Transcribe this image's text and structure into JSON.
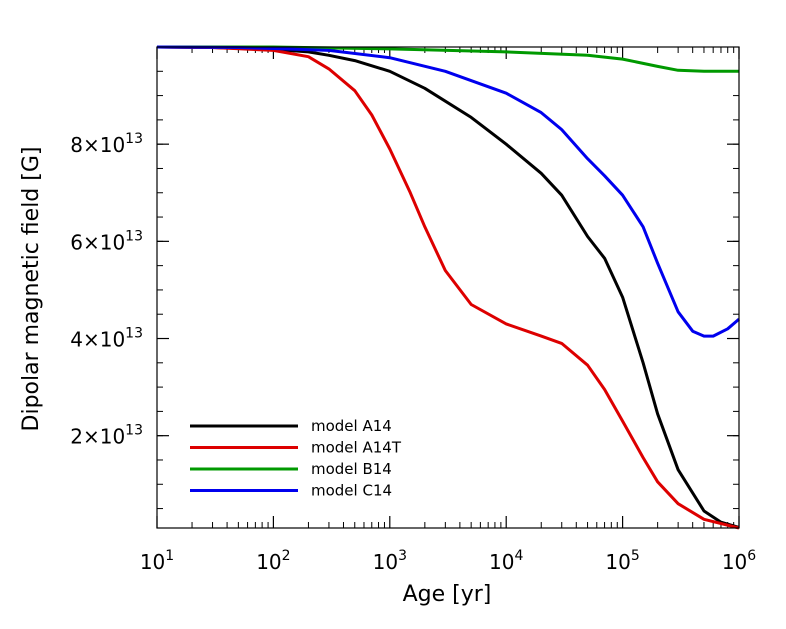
{
  "chart_data": {
    "type": "line",
    "xlabel": "Age [yr]",
    "ylabel": "Dipolar magnetic field [G]",
    "x_scale": "log",
    "xlim": [
      10,
      1000000
    ],
    "ylim": [
      1000000000000.0,
      100000000000000.0
    ],
    "x_ticks": [
      {
        "value": 10,
        "mant": "10",
        "exp": "1"
      },
      {
        "value": 100,
        "mant": "10",
        "exp": "2"
      },
      {
        "value": 1000,
        "mant": "10",
        "exp": "3"
      },
      {
        "value": 10000,
        "mant": "10",
        "exp": "4"
      },
      {
        "value": 100000,
        "mant": "10",
        "exp": "5"
      },
      {
        "value": 1000000,
        "mant": "10",
        "exp": "6"
      }
    ],
    "y_ticks": [
      {
        "value": 20000000000000.0,
        "mant": "2×10",
        "exp": "13"
      },
      {
        "value": 40000000000000.0,
        "mant": "4×10",
        "exp": "13"
      },
      {
        "value": 60000000000000.0,
        "mant": "6×10",
        "exp": "13"
      },
      {
        "value": 80000000000000.0,
        "mant": "8×10",
        "exp": "13"
      }
    ],
    "legend_position": "bottom-left",
    "series": [
      {
        "name": "model A14",
        "color": "#000000",
        "points": [
          [
            10,
            100000000000000.0
          ],
          [
            30,
            99900000000000.0
          ],
          [
            100,
            99500000000000.0
          ],
          [
            200,
            99000000000000.0
          ],
          [
            300,
            98300000000000.0
          ],
          [
            500,
            97200000000000.0
          ],
          [
            1000,
            95000000000000.0
          ],
          [
            2000,
            91500000000000.0
          ],
          [
            5000,
            85500000000000.0
          ],
          [
            10000,
            80000000000000.0
          ],
          [
            20000,
            74000000000000.0
          ],
          [
            30000,
            69500000000000.0
          ],
          [
            50000,
            61000000000000.0
          ],
          [
            70000,
            56500000000000.0
          ],
          [
            100000,
            48500000000000.0
          ],
          [
            150000,
            35000000000000.0
          ],
          [
            200000,
            24500000000000.0
          ],
          [
            300000,
            13000000000000.0
          ],
          [
            500000,
            4500000000000.0
          ],
          [
            700000,
            2200000000000.0
          ],
          [
            1000000,
            1100000000000.0
          ]
        ]
      },
      {
        "name": "model A14T",
        "color": "#dd0000",
        "points": [
          [
            10,
            100000000000000.0
          ],
          [
            30,
            99900000000000.0
          ],
          [
            100,
            99300000000000.0
          ],
          [
            200,
            98000000000000.0
          ],
          [
            300,
            95500000000000.0
          ],
          [
            500,
            91000000000000.0
          ],
          [
            700,
            86000000000000.0
          ],
          [
            1000,
            79000000000000.0
          ],
          [
            1500,
            70000000000000.0
          ],
          [
            2000,
            63000000000000.0
          ],
          [
            3000,
            54000000000000.0
          ],
          [
            5000,
            47000000000000.0
          ],
          [
            10000,
            43000000000000.0
          ],
          [
            20000,
            40500000000000.0
          ],
          [
            30000,
            39000000000000.0
          ],
          [
            50000,
            34500000000000.0
          ],
          [
            70000,
            29500000000000.0
          ],
          [
            100000,
            23000000000000.0
          ],
          [
            150000,
            15500000000000.0
          ],
          [
            200000,
            10500000000000.0
          ],
          [
            300000,
            6000000000000.0
          ],
          [
            500000,
            2800000000000.0
          ],
          [
            1000000,
            1000000000000.0
          ]
        ]
      },
      {
        "name": "model B14",
        "color": "#009900",
        "points": [
          [
            10,
            100000000000000.0
          ],
          [
            100,
            100000000000000.0
          ],
          [
            1000,
            99600000000000.0
          ],
          [
            10000,
            99000000000000.0
          ],
          [
            50000,
            98300000000000.0
          ],
          [
            100000,
            97500000000000.0
          ],
          [
            200000,
            96000000000000.0
          ],
          [
            300000,
            95200000000000.0
          ],
          [
            500000,
            95000000000000.0
          ],
          [
            1000000,
            95000000000000.0
          ]
        ]
      },
      {
        "name": "model C14",
        "color": "#0000ee",
        "points": [
          [
            10,
            100000000000000.0
          ],
          [
            50,
            99900000000000.0
          ],
          [
            100,
            99700000000000.0
          ],
          [
            300,
            99300000000000.0
          ],
          [
            1000,
            97800000000000.0
          ],
          [
            3000,
            95000000000000.0
          ],
          [
            10000,
            90500000000000.0
          ],
          [
            20000,
            86500000000000.0
          ],
          [
            30000,
            83000000000000.0
          ],
          [
            50000,
            77000000000000.0
          ],
          [
            70000,
            73500000000000.0
          ],
          [
            100000,
            69500000000000.0
          ],
          [
            150000,
            63000000000000.0
          ],
          [
            200000,
            55500000000000.0
          ],
          [
            300000,
            45500000000000.0
          ],
          [
            400000,
            41500000000000.0
          ],
          [
            500000,
            40500000000000.0
          ],
          [
            600000,
            40500000000000.0
          ],
          [
            800000,
            42000000000000.0
          ],
          [
            1000000,
            44000000000000.0
          ]
        ]
      }
    ]
  }
}
